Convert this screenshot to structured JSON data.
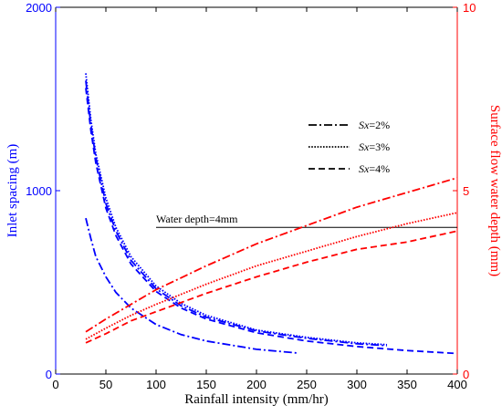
{
  "chart_data": {
    "type": "line",
    "xlabel": "Rainfall intensity (mm/hr)",
    "ylabel_left": "Inlet spacing (m)",
    "ylabel_right": "Surface flow water depth (mm)",
    "xlim": [
      0,
      400
    ],
    "ylim_left": [
      0,
      2000
    ],
    "ylim_right": [
      0,
      10
    ],
    "x_ticks": [
      0,
      50,
      100,
      150,
      200,
      250,
      300,
      350,
      400
    ],
    "y_left_ticks": [
      0,
      1000,
      2000
    ],
    "y_right_ticks": [
      0,
      5,
      10
    ],
    "grid": false,
    "legend_position": "upper-middle",
    "colors": {
      "left_axis": "#0000ff",
      "right_axis": "#ff0000",
      "black": "#000000"
    },
    "legend": [
      {
        "label_italic": "Sx",
        "label_rest": "=2%",
        "style": "dashdot"
      },
      {
        "label_italic": "Sx",
        "label_rest": "=3%",
        "style": "dotted"
      },
      {
        "label_italic": "Sx",
        "label_rest": "=4%",
        "style": "dashed"
      }
    ],
    "annotation": {
      "text": "Water depth=4mm",
      "y_right": 4,
      "x_range": [
        100,
        400
      ]
    },
    "series": [
      {
        "axis": "left",
        "style": "dashdot",
        "color": "#0000ff",
        "x": [
          30,
          35,
          40,
          50,
          60,
          75,
          100,
          125,
          150,
          200,
          240
        ],
        "y": [
          850,
          740,
          640,
          530,
          445,
          360,
          270,
          215,
          180,
          135,
          115
        ]
      },
      {
        "axis": "left",
        "style": "dotted",
        "color": "#0000ff",
        "x": [
          30,
          35,
          40,
          50,
          60,
          75,
          100,
          125,
          150,
          200,
          250,
          300,
          330
        ],
        "y": [
          1640,
          1390,
          1200,
          960,
          800,
          640,
          480,
          385,
          320,
          240,
          200,
          170,
          160
        ]
      },
      {
        "axis": "left",
        "style": "dashdot",
        "color": "#0000ff",
        "x": [
          30,
          35,
          40,
          50,
          60,
          75,
          100,
          125,
          150,
          200,
          250,
          300,
          330
        ],
        "y": [
          1600,
          1360,
          1180,
          930,
          780,
          620,
          465,
          372,
          310,
          235,
          195,
          165,
          155
        ]
      },
      {
        "axis": "left",
        "style": "dashed",
        "color": "#0000ff",
        "x": [
          30,
          35,
          40,
          50,
          60,
          75,
          100,
          125,
          150,
          200,
          250,
          300,
          350,
          400
        ],
        "y": [
          1560,
          1330,
          1150,
          905,
          755,
          600,
          450,
          360,
          300,
          225,
          180,
          150,
          128,
          112
        ]
      },
      {
        "axis": "right",
        "style": "dashdot",
        "color": "#ff0000",
        "x": [
          30,
          50,
          75,
          100,
          150,
          200,
          250,
          300,
          350,
          400
        ],
        "y": [
          1.15,
          1.5,
          1.9,
          2.3,
          2.95,
          3.55,
          4.05,
          4.55,
          4.95,
          5.35
        ]
      },
      {
        "axis": "right",
        "style": "dotted",
        "color": "#ff0000",
        "x": [
          30,
          50,
          75,
          100,
          150,
          200,
          250,
          300,
          350,
          400
        ],
        "y": [
          0.95,
          1.25,
          1.6,
          1.9,
          2.45,
          2.95,
          3.35,
          3.75,
          4.1,
          4.4
        ]
      },
      {
        "axis": "right",
        "style": "dashed",
        "color": "#ff0000",
        "x": [
          30,
          50,
          75,
          100,
          150,
          200,
          250,
          300,
          350,
          400
        ],
        "y": [
          0.85,
          1.1,
          1.45,
          1.7,
          2.2,
          2.65,
          3.05,
          3.4,
          3.6,
          3.9
        ]
      }
    ]
  }
}
